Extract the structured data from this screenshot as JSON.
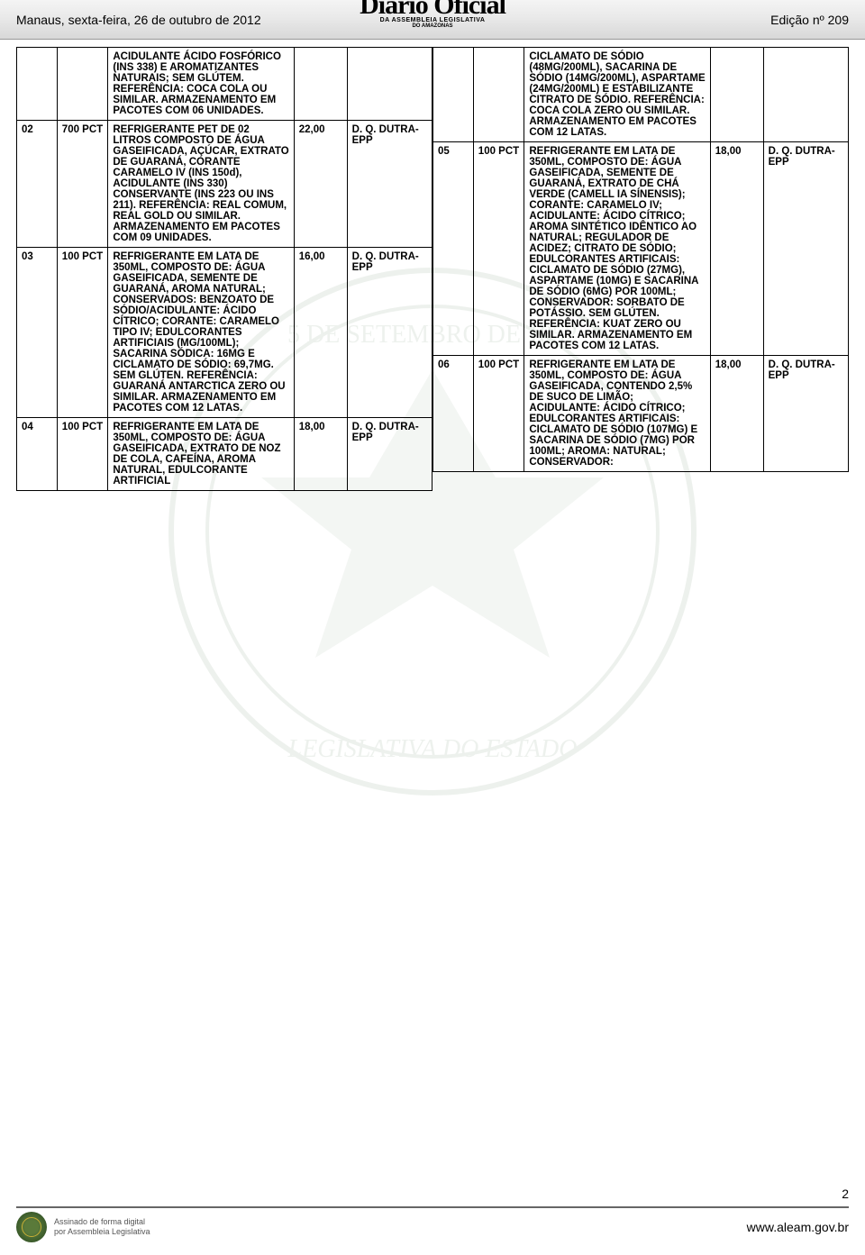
{
  "header": {
    "left": "Manaus, sexta-feira, 26 de outubro de 2012",
    "right": "Edição nº 209",
    "masthead_title": "Diário Oficial",
    "masthead_sub1": "DA ASSEMBLEIA LEGISLATIVA",
    "masthead_sub2": "DO AMAZONAS"
  },
  "left_table": {
    "rows": [
      {
        "num": "",
        "qty": "",
        "desc": "ACIDULANTE ÁCIDO FOSFÓRICO (INS 338) E AROMATIZANTES NATURAIS; SEM GLÚTEM. REFERÊNCIA: COCA COLA OU SIMILAR. ARMAZENAMENTO EM PACOTES COM 06 UNIDADES.",
        "val": "",
        "sup": ""
      },
      {
        "num": "02",
        "qty": "700 PCT",
        "desc": "REFRIGERANTE PET DE 02 LITROS COMPOSTO DE ÁGUA GASEIFICADA, AÇÚCAR, EXTRATO DE GUARANÁ, CORANTE CARAMELO IV (INS 150d), ACIDULANTE (INS 330) CONSERVANTE (INS 223 OU INS 211). REFERÊNCIA: REAL COMUM, REAL GOLD OU SIMILAR. ARMAZENAMENTO EM PACOTES COM 09 UNIDADES.",
        "val": "22,00",
        "sup": "D. Q. DUTRA-EPP"
      },
      {
        "num": "03",
        "qty": "100 PCT",
        "desc": "REFRIGERANTE EM LATA DE 350ML, COMPOSTO DE: ÁGUA GASEIFICADA, SEMENTE DE GUARANÁ, AROMA NATURAL; CONSERVADOS: BENZOATO DE SÓDIO/ACIDULANTE: ÁCIDO CÍTRICO; CORANTE: CARAMELO TIPO IV; EDULCORANTES ARTIFICIAIS (MG/100ML); SACARINA SÓDICA: 16MG E CICLAMATO DE SÓDIO: 69,7MG. SEM GLÚTEN. REFERÊNCIA: GUARANÁ ANTARCTICA ZERO OU SIMILAR. ARMAZENAMENTO EM PACOTES COM 12 LATAS.",
        "val": "16,00",
        "sup": "D. Q. DUTRA-EPP"
      },
      {
        "num": "04",
        "qty": "100 PCT",
        "desc": "REFRIGERANTE EM LATA DE 350ML, COMPOSTO DE: ÁGUA GASEIFICADA, EXTRATO DE NOZ DE COLA, CAFEÍNA, AROMA NATURAL, EDULCORANTE ARTIFICIAL",
        "val": "18,00",
        "sup": "D. Q. DUTRA-EPP"
      }
    ]
  },
  "right_table": {
    "rows": [
      {
        "num": "",
        "qty": "",
        "desc": "CICLAMATO DE SÓDIO (48MG/200ML), SACARINA DE SÓDIO (14MG/200ML), ASPARTAME (24MG/200ML) E ESTABILIZANTE CITRATO DE SÓDIO. REFERÊNCIA: COCA COLA ZERO OU SIMILAR. ARMAZENAMENTO EM PACOTES COM 12 LATAS.",
        "val": "",
        "sup": ""
      },
      {
        "num": "05",
        "qty": "100 PCT",
        "desc": "REFRIGERANTE EM LATA DE 350ML, COMPOSTO DE: ÁGUA GASEIFICADA, SEMENTE DE GUARANÁ, EXTRATO DE CHÁ VERDE (CAMELL IA SÍNENSIS); CORANTE: CARAMELO IV; ACIDULANTE: ÁCIDO CÍTRICO; AROMA SINTÉTICO IDÊNTICO AO NATURAL; REGULADOR DE ACIDEZ; CITRATO DE SÓDIO; EDULCORANTES ARTIFICAIS: CICLAMATO DE SÓDIO (27MG), ASPARTAME (10MG) E SACARINA DE SÓDIO (6MG) POR 100ML; CONSERVADOR: SORBATO DE POTÁSSIO. SEM GLÚTEN. REFERÊNCIA: KUAT ZERO OU SIMILAR. ARMAZENAMENTO EM PACOTES COM 12 LATAS.",
        "val": "18,00",
        "sup": "D. Q. DUTRA-EPP"
      },
      {
        "num": "06",
        "qty": "100 PCT",
        "desc": "REFRIGERANTE EM LATA DE 350ML, COMPOSTO DE: ÁGUA GASEIFICADA, CONTENDO 2,5% DE SUCO DE LIMÃO; ACIDULANTE: ÁCIDO CÍTRICO; EDULCORANTES ARTIFICAIS: CICLAMATO DE SÓDIO (107MG) E SACARINA DE SÓDIO (7MG) POR 100ML; AROMA: NATURAL; CONSERVADOR:",
        "val": "18,00",
        "sup": "D. Q. DUTRA-EPP"
      }
    ]
  },
  "footer": {
    "page_num": "2",
    "sig_line1": "Assinado de forma digital",
    "sig_line2": "por Assembleia Legislativa",
    "url": "www.aleam.gov.br"
  }
}
